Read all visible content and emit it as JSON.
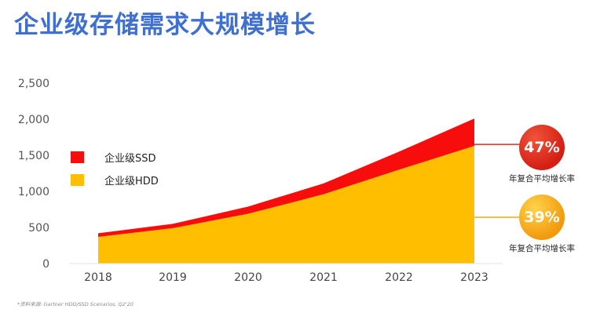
{
  "title": "企业级存储需求大规模增长",
  "chart_data": {
    "type": "area",
    "stacked": true,
    "categories": [
      "2018",
      "2019",
      "2020",
      "2021",
      "2022",
      "2023"
    ],
    "series": [
      {
        "name": "企业级HDD",
        "color": "#ffbf00",
        "values": [
          370,
          490,
          690,
          960,
          1300,
          1630
        ]
      },
      {
        "name": "企业级SSD",
        "color": "#f80d0d",
        "values": [
          50,
          60,
          100,
          150,
          250,
          380
        ]
      }
    ],
    "ylim": [
      0,
      2500
    ],
    "yticks": [
      0,
      500,
      1000,
      1500,
      2000,
      2500
    ],
    "ytick_labels": [
      "0",
      "500",
      "1,000",
      "1,500",
      "2,000",
      "2,500"
    ],
    "grid": false,
    "legend_position": "left"
  },
  "legend": [
    {
      "label": "企业级SSD",
      "color": "#f80d0d"
    },
    {
      "label": "企业级HDD",
      "color": "#ffbf00"
    }
  ],
  "badges": [
    {
      "value": "47%",
      "label": "年复合平均增长率",
      "color": "#e12a1c"
    },
    {
      "value": "39%",
      "label": "年复合平均增长率",
      "color": "#f59f0b"
    }
  ],
  "footnote": "*资料来源: Gartner HDD/SSD Scenarios, Q2'20"
}
